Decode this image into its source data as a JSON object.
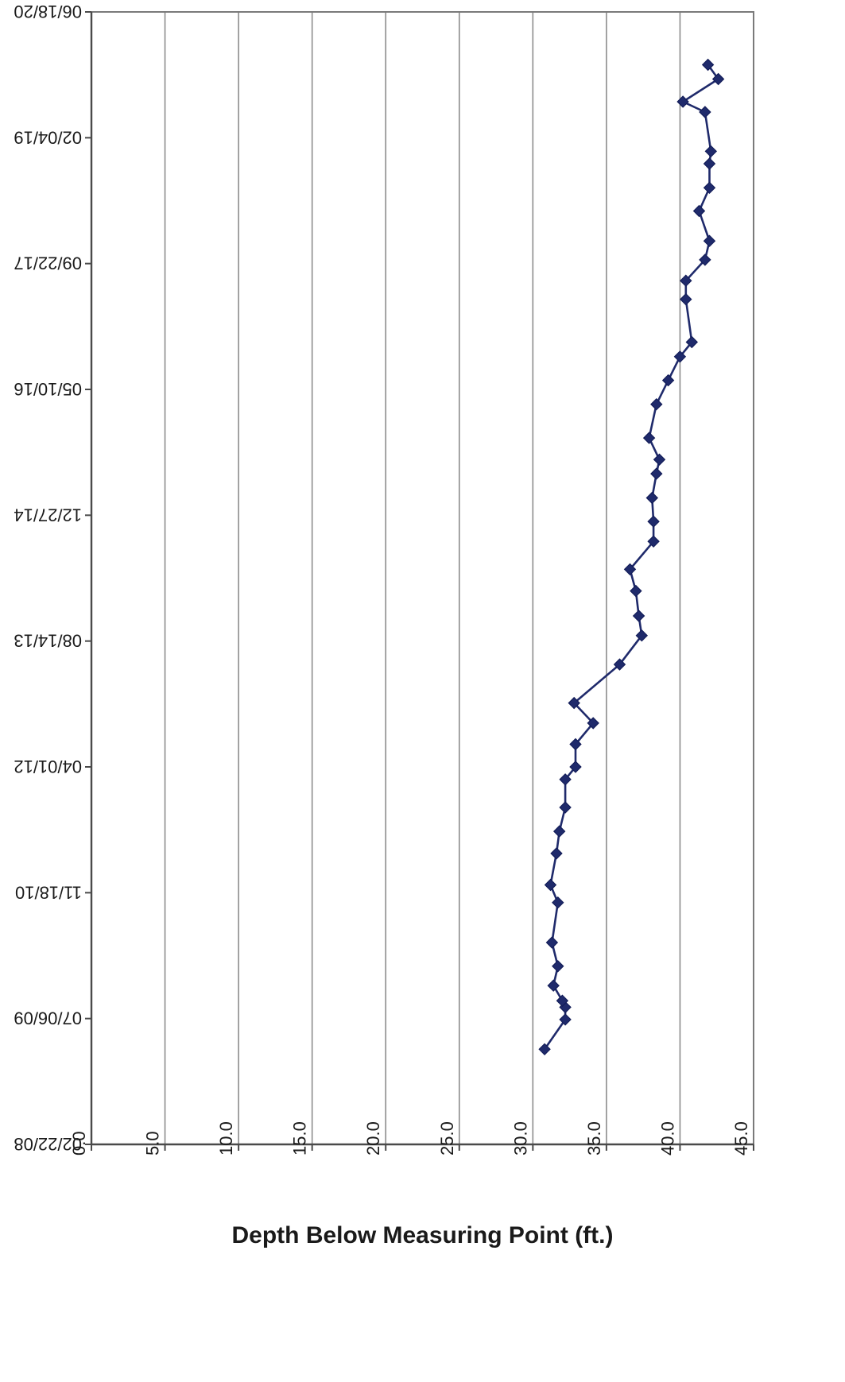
{
  "chart_data": {
    "type": "line",
    "title": "",
    "ylabel": "Depth Below Measuring Point (ft.)",
    "xlabel": "",
    "orientation": "rotated 180 degrees (upside-down); value axis runs left-to-right along the bottom of the flipped figure",
    "value_axis": {
      "range": [
        0,
        45
      ],
      "ticks": [
        0,
        5,
        10,
        15,
        20,
        25,
        30,
        35,
        40,
        45
      ],
      "tick_labels": [
        "0.0",
        "5.0",
        "10.0",
        "15.0",
        "20.0",
        "25.0",
        "30.0",
        "35.0",
        "40.0",
        "45.0"
      ]
    },
    "date_axis": {
      "range": [
        "02/22/08",
        "06/18/20"
      ],
      "ticks": [
        "02/22/08",
        "07/06/09",
        "11/18/10",
        "04/01/12",
        "08/14/13",
        "12/27/14",
        "05/10/16",
        "09/22/17",
        "02/04/19",
        "06/18/20"
      ],
      "tick_labels": [
        "02/22/08",
        "07/06/09",
        "11/18/10",
        "04/01/12",
        "08/14/13",
        "12/27/14",
        "05/10/16",
        "09/22/17",
        "02/04/19",
        "06/18/20"
      ]
    },
    "grid": true,
    "legend": "none",
    "marker": "diamond",
    "series_color": "#1f2a6b",
    "series": [
      {
        "x": [
          "2009-03-06",
          "2009-07-02",
          "2009-08-20",
          "2009-09-15",
          "2009-11-14",
          "2010-01-30",
          "2010-05-04",
          "2010-10-10",
          "2010-12-19",
          "2011-04-23",
          "2011-07-20",
          "2011-10-23",
          "2012-02-11",
          "2012-04-01",
          "2012-06-30",
          "2012-09-22",
          "2012-12-11",
          "2013-05-13",
          "2013-09-05",
          "2013-11-22",
          "2014-03-01",
          "2014-05-26",
          "2014-09-14",
          "2014-12-02",
          "2015-03-06",
          "2015-06-10",
          "2015-08-05",
          "2015-10-30",
          "2016-03-12",
          "2016-06-15",
          "2016-09-17",
          "2016-11-14",
          "2017-05-03",
          "2017-07-16",
          "2017-10-07",
          "2017-12-21",
          "2018-04-19",
          "2018-07-20",
          "2018-10-24",
          "2018-12-12",
          "2019-05-17",
          "2019-06-27",
          "2019-09-25",
          "2019-11-21"
        ],
        "values": [
          30.8,
          32.2,
          32.2,
          32.0,
          31.4,
          31.7,
          31.3,
          31.7,
          31.2,
          31.6,
          31.8,
          32.2,
          32.2,
          32.9,
          32.9,
          34.1,
          32.8,
          35.9,
          37.4,
          37.2,
          37.0,
          36.6,
          38.2,
          38.2,
          38.1,
          38.4,
          38.6,
          37.9,
          38.4,
          39.2,
          40.0,
          40.8,
          40.4,
          40.4,
          41.7,
          42.0,
          41.3,
          42.0,
          42.0,
          42.1,
          41.7,
          40.2,
          42.6,
          41.9
        ]
      }
    ]
  }
}
